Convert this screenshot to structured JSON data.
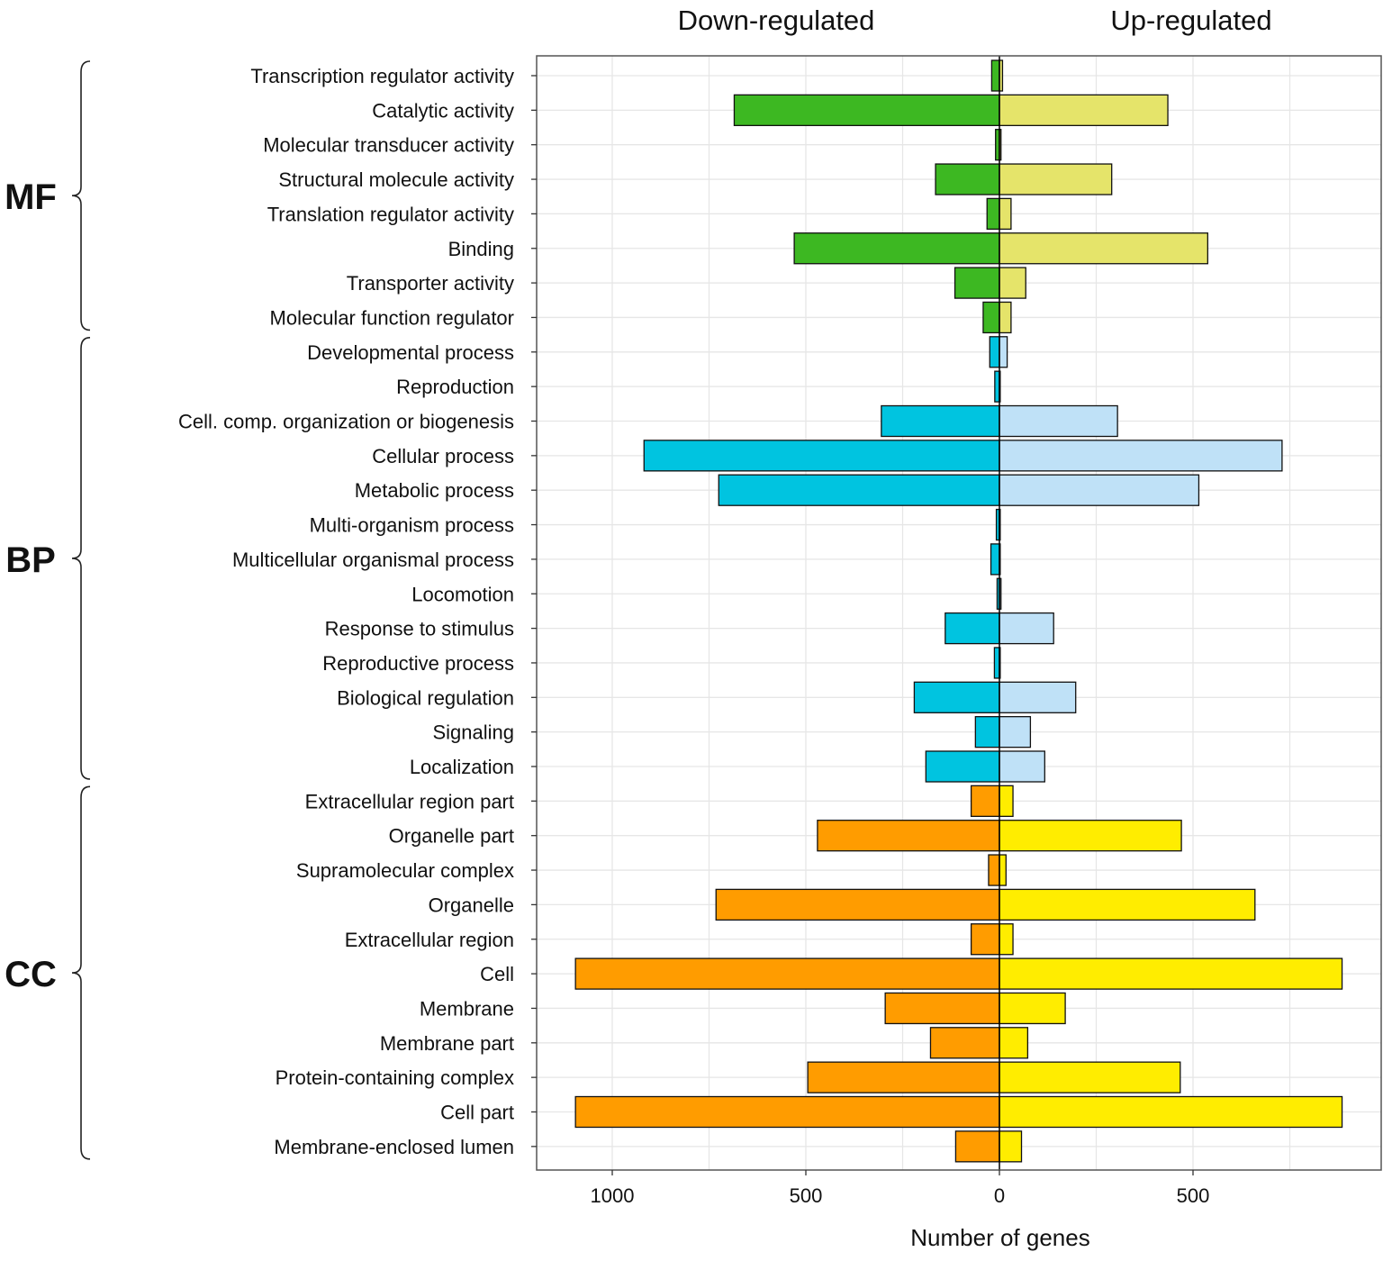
{
  "chart_data": {
    "type": "bar",
    "orientation": "horizontal-diverging",
    "title_left": "Down-regulated",
    "title_right": "Up-regulated",
    "xlabel": "Number of genes",
    "xlim": [
      -1200,
      990
    ],
    "ticks": [
      {
        "value": -1000,
        "label": "1000"
      },
      {
        "value": -500,
        "label": "500"
      },
      {
        "value": 0,
        "label": "0"
      },
      {
        "value": 500,
        "label": "500"
      }
    ],
    "grid": true,
    "groups": [
      {
        "name": "MF",
        "down_color": "#3db822",
        "up_color": "#e5e46a",
        "categories": [
          "Transcription regulator activity",
          "Catalytic activity",
          "Molecular transducer activity",
          "Structural molecule activity",
          "Translation regulator activity",
          "Binding",
          "Transporter activity",
          "Molecular function regulator"
        ],
        "down": [
          20,
          685,
          10,
          165,
          32,
          530,
          115,
          42
        ],
        "up": [
          8,
          435,
          4,
          290,
          30,
          538,
          68,
          30
        ]
      },
      {
        "name": "BP",
        "down_color": "#00c4e0",
        "up_color": "#bfe1f7",
        "categories": [
          "Developmental process",
          "Reproduction",
          "Cell. comp. organization or biogenesis",
          "Cellular process",
          "Metabolic process",
          "Multi-organism process",
          "Multicellular organismal process",
          "Locomotion",
          "Response to stimulus",
          "Reproductive process",
          "Biological regulation",
          "Signaling",
          "Localization"
        ],
        "down": [
          25,
          12,
          305,
          918,
          725,
          8,
          22,
          6,
          140,
          13,
          220,
          62,
          190
        ],
        "up": [
          20,
          2,
          305,
          730,
          515,
          2,
          2,
          4,
          140,
          2,
          197,
          80,
          117
        ]
      },
      {
        "name": "CC",
        "down_color": "#ff9c00",
        "up_color": "#ffed00",
        "categories": [
          "Extracellular region part",
          "Organelle part",
          "Supramolecular complex",
          "Organelle",
          "Extracellular region",
          "Cell",
          "Membrane",
          "Membrane part",
          "Protein-containing complex",
          "Cell part",
          "Membrane-enclosed lumen"
        ],
        "down": [
          73,
          470,
          28,
          732,
          73,
          1095,
          295,
          178,
          495,
          1095,
          113
        ],
        "up": [
          35,
          470,
          17,
          660,
          35,
          885,
          170,
          73,
          467,
          885,
          57
        ]
      }
    ]
  }
}
